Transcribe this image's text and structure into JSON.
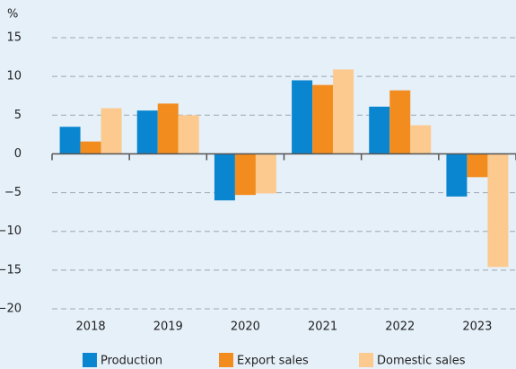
{
  "chart_data": {
    "type": "bar",
    "y_label": "%",
    "categories": [
      "2018",
      "2019",
      "2020",
      "2021",
      "2022",
      "2023"
    ],
    "series": [
      {
        "name": "Production",
        "color": "#0a86d0",
        "values": [
          3.5,
          5.6,
          -6.0,
          9.5,
          6.1,
          -5.5
        ]
      },
      {
        "name": "Export sales",
        "color": "#f28c1e",
        "values": [
          1.6,
          6.5,
          -5.3,
          8.9,
          8.2,
          -3.0
        ]
      },
      {
        "name": "Domestic sales",
        "color": "#fcc98f",
        "values": [
          5.9,
          5.0,
          -5.1,
          10.9,
          3.7,
          -14.6
        ]
      }
    ],
    "ylim": [
      -20,
      15
    ],
    "yticks": [
      15,
      10,
      5,
      0,
      {
        "value": -5,
        "label": "−5"
      },
      {
        "value": -10,
        "label": "−10"
      },
      {
        "value": -15,
        "label": "−15"
      },
      {
        "value": -20,
        "label": "−20"
      }
    ],
    "grid": true,
    "legend": "bottom"
  }
}
